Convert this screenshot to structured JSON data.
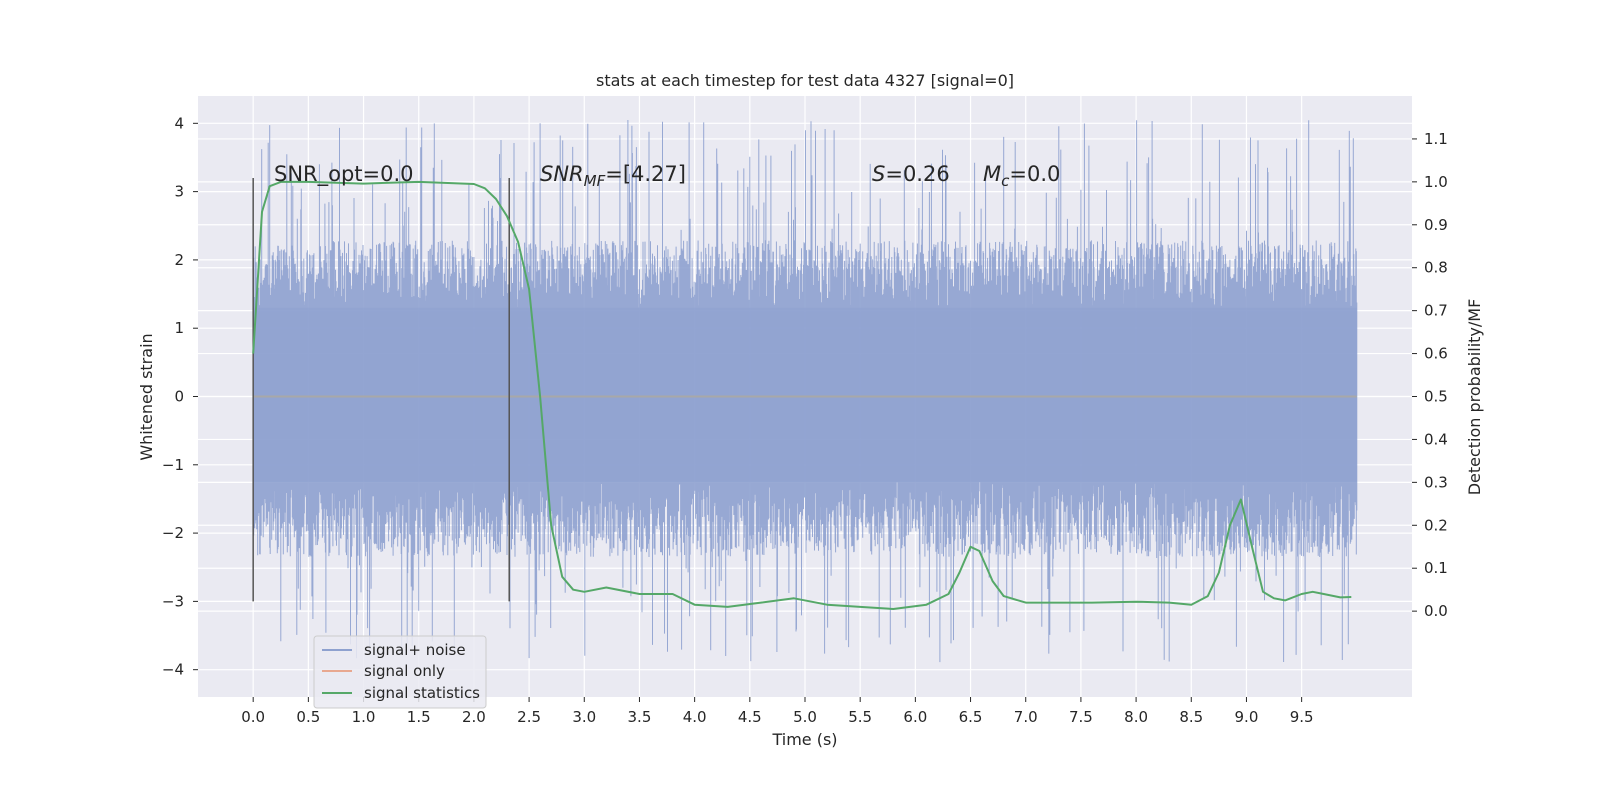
{
  "chart_data": {
    "type": "line",
    "title": "stats at each timestep for test data 4327 [signal=0]",
    "xlabel": "Time (s)",
    "ylabel_left": "Whitened strain",
    "ylabel_right": "Detection probability/MF",
    "xlim": [
      -0.5,
      10.5
    ],
    "ylim_left": [
      -4.4,
      4.4
    ],
    "ylim_right": [
      -0.2,
      1.2
    ],
    "xticks": [
      0.0,
      0.5,
      1.0,
      1.5,
      2.0,
      2.5,
      3.0,
      3.5,
      4.0,
      4.5,
      5.0,
      5.5,
      6.0,
      6.5,
      7.0,
      7.5,
      8.0,
      8.5,
      9.0,
      9.5
    ],
    "xtick_labels": [
      "0.0",
      "0.5",
      "1.0",
      "1.5",
      "2.0",
      "2.5",
      "3.0",
      "3.5",
      "4.0",
      "4.5",
      "5.0",
      "5.5",
      "6.0",
      "6.5",
      "7.0",
      "7.5",
      "8.0",
      "8.5",
      "9.0",
      "9.5"
    ],
    "yticks_left": [
      -4,
      -3,
      -2,
      -1,
      0,
      1,
      2,
      3,
      4
    ],
    "yticks_left_labels": [
      "−4",
      "−3",
      "−2",
      "−1",
      "0",
      "1",
      "2",
      "3",
      "4"
    ],
    "yticks_right": [
      0.0,
      0.1,
      0.2,
      0.3,
      0.4,
      0.5,
      0.6,
      0.7,
      0.8,
      0.9,
      1.0,
      1.1
    ],
    "yticks_right_labels": [
      "0.0",
      "0.1",
      "0.2",
      "0.3",
      "0.4",
      "0.5",
      "0.6",
      "0.7",
      "0.8",
      "0.9",
      "1.0",
      "1.1"
    ],
    "grid": true,
    "legend_position": "lower-left",
    "annotations": {
      "snr_opt": "SNR_opt=0.0",
      "snr_mf_main": "SNR",
      "snr_mf_sub": "MF",
      "snr_mf_rest": "=[4.27]",
      "s_main": "S",
      "s_rest": "=0.26",
      "mc_main": "M",
      "mc_sub": "c",
      "mc_rest": "=0.0"
    },
    "vlines": [
      {
        "x": 0.0,
        "y_range": [
          -3.0,
          3.2
        ]
      },
      {
        "x": 2.32,
        "y_range": [
          -3.0,
          3.2
        ]
      }
    ],
    "noise_envelope": {
      "t_start": 0.0,
      "t_end": 10.0,
      "core_band": [
        -1.25,
        1.3
      ],
      "typical_peak": 2.4,
      "max_positive": 4.05,
      "min_negative": -3.9
    },
    "series": [
      {
        "name": "signal+ noise",
        "color": "#8ea1cf",
        "style": "dense noise trace"
      },
      {
        "name": "signal only",
        "color": "#e8a890",
        "x": [
          0.0,
          10.0
        ],
        "y": [
          0.0,
          0.0
        ]
      },
      {
        "name": "signal statistics",
        "color": "#55a868",
        "x": [
          0.0,
          0.08,
          0.15,
          0.25,
          0.5,
          1.0,
          1.5,
          2.0,
          2.1,
          2.2,
          2.3,
          2.4,
          2.5,
          2.6,
          2.7,
          2.8,
          2.9,
          3.0,
          3.2,
          3.5,
          3.8,
          4.0,
          4.3,
          4.6,
          4.9,
          5.2,
          5.5,
          5.8,
          6.1,
          6.3,
          6.4,
          6.5,
          6.58,
          6.7,
          6.8,
          7.0,
          7.3,
          7.6,
          8.0,
          8.3,
          8.5,
          8.65,
          8.75,
          8.85,
          8.95,
          9.05,
          9.15,
          9.25,
          9.35,
          9.5,
          9.6,
          9.7,
          9.85,
          9.95
        ],
        "y": [
          0.6,
          0.93,
          0.99,
          1.0,
          1.0,
          0.996,
          1.0,
          0.995,
          0.985,
          0.96,
          0.92,
          0.86,
          0.75,
          0.5,
          0.2,
          0.08,
          0.05,
          0.045,
          0.055,
          0.04,
          0.04,
          0.015,
          0.01,
          0.02,
          0.03,
          0.015,
          0.01,
          0.005,
          0.015,
          0.04,
          0.09,
          0.15,
          0.14,
          0.07,
          0.035,
          0.02,
          0.02,
          0.02,
          0.022,
          0.02,
          0.015,
          0.035,
          0.09,
          0.2,
          0.26,
          0.15,
          0.045,
          0.03,
          0.025,
          0.04,
          0.045,
          0.04,
          0.032,
          0.033
        ]
      }
    ]
  }
}
